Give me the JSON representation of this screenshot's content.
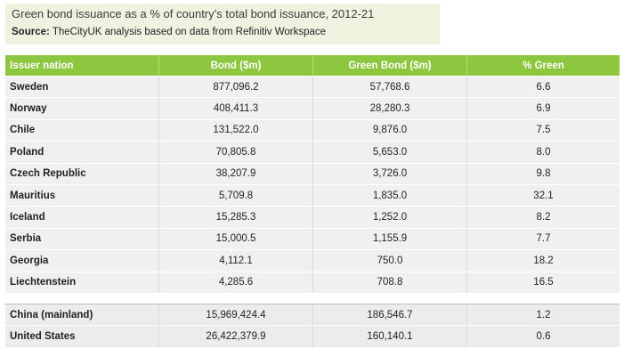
{
  "title": "Green bond issuance as a % of country’s total bond issuance, 2012-21",
  "source_label": "Source:",
  "source_text": "TheCityUK analysis based on data from Refinitiv Workspace",
  "table": {
    "headers": [
      "Issuer nation",
      "Bond ($m)",
      "Green Bond ($m)",
      "% Green"
    ],
    "rows": [
      [
        "Sweden",
        "877,096.2",
        "57,768.6",
        "6.6"
      ],
      [
        "Norway",
        "408,411.3",
        "28,280.3",
        "6.9"
      ],
      [
        "Chile",
        "131,522.0",
        "9,876.0",
        "7.5"
      ],
      [
        "Poland",
        "70,805.8",
        "5,653.0",
        "8.0"
      ],
      [
        "Czech Republic",
        "38,207.9",
        "3,726.0",
        "9.8"
      ],
      [
        "Mauritius",
        "5,709.8",
        "1,835.0",
        "32.1"
      ],
      [
        "Iceland",
        "15,285.3",
        "1,252.0",
        "8.2"
      ],
      [
        "Serbia",
        "15,000.5",
        "1,155.9",
        "7.7"
      ],
      [
        "Georgia",
        "4,112.1",
        "750.0",
        "18.2"
      ],
      [
        "Liechtenstein",
        "4,285.6",
        "708.8",
        "16.5"
      ]
    ],
    "comparison_rows": [
      [
        "China (mainland)",
        "15,969,424.4",
        "186,546.7",
        "1.2"
      ],
      [
        "United States",
        "26,422,379.9",
        "160,140.1",
        "0.6"
      ]
    ]
  },
  "colors": {
    "header_green": "#8dc63f",
    "title_box": "#eef3e0",
    "row_grey": "#f0f0f0"
  }
}
